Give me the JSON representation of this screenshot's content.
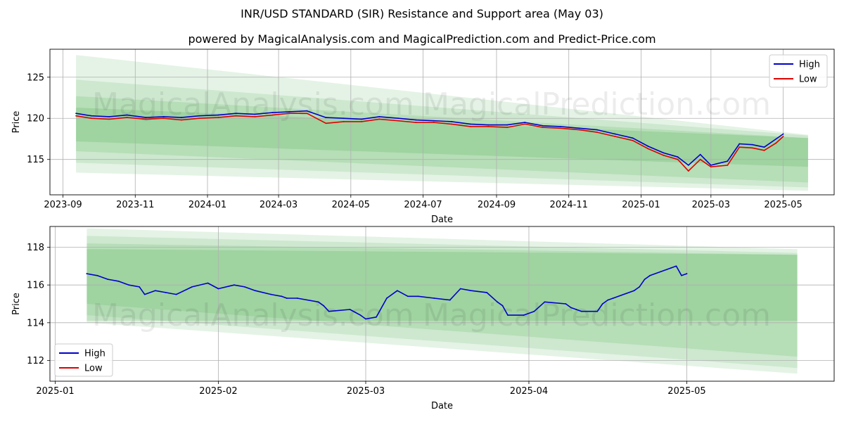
{
  "title": "INR/USD STANDARD (SIR) Resistance and Support area (May 03)",
  "subtitle": "powered by MagicalAnalysis.com and MagicalPrediction.com and Predict-Price.com",
  "watermarks": [
    "MagicalAnalysis.com",
    "MagicalPrediction.com"
  ],
  "colors": {
    "high": "#0000cc",
    "low": "#dd0000",
    "band": "#4caf50",
    "grid": "#b0b0b0"
  },
  "chart_data": [
    {
      "type": "line",
      "xlabel": "Date",
      "ylabel": "Price",
      "grid": true,
      "legend_position": "top-right",
      "xlim": [
        "2023-08-21",
        "2025-06-13"
      ],
      "ylim": [
        110.7,
        128.4
      ],
      "xticks": [
        "2023-09",
        "2023-11",
        "2024-01",
        "2024-03",
        "2024-05",
        "2024-07",
        "2024-09",
        "2024-11",
        "2025-01",
        "2025-03",
        "2025-05"
      ],
      "yticks": [
        115,
        120,
        125
      ],
      "series": [
        {
          "name": "High",
          "color": "#0000cc",
          "x": [
            "2023-09-12",
            "2023-09-25",
            "2023-10-10",
            "2023-10-25",
            "2023-11-10",
            "2023-11-25",
            "2023-12-10",
            "2023-12-25",
            "2024-01-10",
            "2024-01-25",
            "2024-02-10",
            "2024-02-25",
            "2024-03-10",
            "2024-03-25",
            "2024-04-10",
            "2024-04-25",
            "2024-05-10",
            "2024-05-25",
            "2024-06-10",
            "2024-06-25",
            "2024-07-10",
            "2024-07-25",
            "2024-08-10",
            "2024-08-25",
            "2024-09-10",
            "2024-09-25",
            "2024-10-10",
            "2024-10-25",
            "2024-11-10",
            "2024-11-25",
            "2024-12-10",
            "2024-12-25",
            "2025-01-07",
            "2025-01-20",
            "2025-02-01",
            "2025-02-10",
            "2025-02-20",
            "2025-03-01",
            "2025-03-15",
            "2025-03-25",
            "2025-04-05",
            "2025-04-15",
            "2025-04-25",
            "2025-05-01"
          ],
          "values": [
            120.6,
            120.3,
            120.2,
            120.4,
            120.1,
            120.2,
            120.1,
            120.3,
            120.4,
            120.6,
            120.5,
            120.7,
            120.8,
            120.9,
            120.1,
            120.0,
            119.9,
            120.2,
            120.0,
            119.8,
            119.7,
            119.6,
            119.3,
            119.2,
            119.2,
            119.5,
            119.1,
            119.0,
            118.8,
            118.6,
            118.1,
            117.6,
            116.6,
            115.8,
            115.3,
            114.3,
            115.6,
            114.3,
            114.8,
            116.9,
            116.8,
            116.5,
            117.5,
            118.1
          ]
        },
        {
          "name": "Low",
          "color": "#dd0000",
          "x": [
            "2023-09-12",
            "2023-09-25",
            "2023-10-10",
            "2023-10-25",
            "2023-11-10",
            "2023-11-25",
            "2023-12-10",
            "2023-12-25",
            "2024-01-10",
            "2024-01-25",
            "2024-02-10",
            "2024-02-25",
            "2024-03-10",
            "2024-03-25",
            "2024-04-10",
            "2024-04-25",
            "2024-05-10",
            "2024-05-25",
            "2024-06-10",
            "2024-06-25",
            "2024-07-10",
            "2024-07-25",
            "2024-08-10",
            "2024-08-25",
            "2024-09-10",
            "2024-09-25",
            "2024-10-10",
            "2024-10-25",
            "2024-11-10",
            "2024-11-25",
            "2024-12-10",
            "2024-12-25",
            "2025-01-07",
            "2025-01-20",
            "2025-02-01",
            "2025-02-10",
            "2025-02-20",
            "2025-03-01",
            "2025-03-15",
            "2025-03-25",
            "2025-04-05",
            "2025-04-15",
            "2025-04-25",
            "2025-05-01"
          ],
          "values": [
            120.3,
            120.0,
            119.9,
            120.1,
            119.9,
            120.0,
            119.8,
            120.0,
            120.1,
            120.3,
            120.2,
            120.4,
            120.6,
            120.6,
            119.4,
            119.6,
            119.6,
            119.9,
            119.7,
            119.5,
            119.5,
            119.3,
            119.0,
            119.0,
            118.9,
            119.3,
            118.9,
            118.8,
            118.6,
            118.3,
            117.8,
            117.3,
            116.3,
            115.5,
            115.0,
            113.6,
            115.0,
            114.1,
            114.3,
            116.5,
            116.4,
            116.1,
            117.0,
            117.8
          ]
        }
      ]
    },
    {
      "type": "line",
      "xlabel": "Date",
      "ylabel": "Price",
      "grid": true,
      "legend_position": "bottom-left",
      "xlim": [
        "2024-12-31",
        "2025-05-29"
      ],
      "ylim": [
        110.9,
        119.1
      ],
      "xticks": [
        "2025-01",
        "2025-02",
        "2025-03",
        "2025-04",
        "2025-05"
      ],
      "yticks": [
        112,
        114,
        116,
        118
      ],
      "series": [
        {
          "name": "High",
          "color": "#0000cc",
          "x": [
            "2025-01-07",
            "2025-01-09",
            "2025-01-11",
            "2025-01-13",
            "2025-01-15",
            "2025-01-17",
            "2025-01-18",
            "2025-01-20",
            "2025-01-22",
            "2025-01-24",
            "2025-01-27",
            "2025-01-30",
            "2025-02-01",
            "2025-02-04",
            "2025-02-06",
            "2025-02-08",
            "2025-02-11",
            "2025-02-13",
            "2025-02-14",
            "2025-02-16",
            "2025-02-20",
            "2025-02-21",
            "2025-02-22",
            "2025-02-26",
            "2025-02-28",
            "2025-03-01",
            "2025-03-03",
            "2025-03-05",
            "2025-03-07",
            "2025-03-09",
            "2025-03-11",
            "2025-03-14",
            "2025-03-17",
            "2025-03-19",
            "2025-03-21",
            "2025-03-24",
            "2025-03-26",
            "2025-03-27",
            "2025-03-28",
            "2025-03-31",
            "2025-04-02",
            "2025-04-04",
            "2025-04-08",
            "2025-04-09",
            "2025-04-10",
            "2025-04-11",
            "2025-04-14",
            "2025-04-15",
            "2025-04-16",
            "2025-04-17",
            "2025-04-21",
            "2025-04-22",
            "2025-04-23",
            "2025-04-24",
            "2025-04-28",
            "2025-04-29",
            "2025-04-30",
            "2025-05-01"
          ],
          "values": [
            116.6,
            116.5,
            116.3,
            116.2,
            116.0,
            115.9,
            115.5,
            115.7,
            115.6,
            115.5,
            115.9,
            116.1,
            115.8,
            116.0,
            115.9,
            115.7,
            115.5,
            115.4,
            115.3,
            115.3,
            115.1,
            114.9,
            114.6,
            114.7,
            114.4,
            114.2,
            114.3,
            115.3,
            115.7,
            115.4,
            115.4,
            115.3,
            115.2,
            115.8,
            115.7,
            115.6,
            115.1,
            114.9,
            114.4,
            114.4,
            114.6,
            115.1,
            115.0,
            114.8,
            114.7,
            114.6,
            114.6,
            115.0,
            115.2,
            115.3,
            115.7,
            115.9,
            116.3,
            116.5,
            116.9,
            117.0,
            116.5,
            116.6
          ]
        }
      ]
    }
  ]
}
